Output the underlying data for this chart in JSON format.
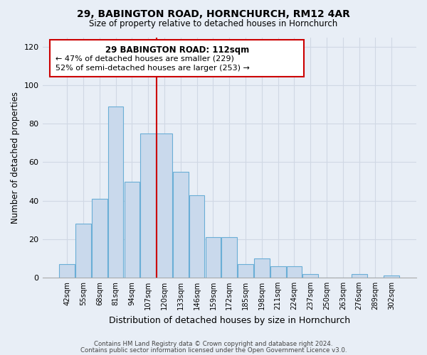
{
  "title": "29, BABINGTON ROAD, HORNCHURCH, RM12 4AR",
  "subtitle": "Size of property relative to detached houses in Hornchurch",
  "xlabel": "Distribution of detached houses by size in Hornchurch",
  "ylabel": "Number of detached properties",
  "categories": [
    "42sqm",
    "55sqm",
    "68sqm",
    "81sqm",
    "94sqm",
    "107sqm",
    "120sqm",
    "133sqm",
    "146sqm",
    "159sqm",
    "172sqm",
    "185sqm",
    "198sqm",
    "211sqm",
    "224sqm",
    "237sqm",
    "250sqm",
    "263sqm",
    "276sqm",
    "289sqm",
    "302sqm"
  ],
  "values": [
    7,
    28,
    41,
    89,
    50,
    75,
    75,
    55,
    43,
    21,
    21,
    7,
    10,
    6,
    6,
    2,
    0,
    0,
    2,
    0,
    1
  ],
  "bar_color": "#c9d9ec",
  "bar_edge_color": "#6aaed6",
  "vline_x": 6.0,
  "vline_color": "#cc0000",
  "annotation_title": "29 BABINGTON ROAD: 112sqm",
  "annotation_line1": "← 47% of detached houses are smaller (229)",
  "annotation_line2": "52% of semi-detached houses are larger (253) →",
  "annotation_box_facecolor": "#ffffff",
  "annotation_box_edgecolor": "#cc0000",
  "ylim": [
    0,
    125
  ],
  "yticks": [
    0,
    20,
    40,
    60,
    80,
    100,
    120
  ],
  "grid_color": "#d0d8e4",
  "footer1": "Contains HM Land Registry data © Crown copyright and database right 2024.",
  "footer2": "Contains public sector information licensed under the Open Government Licence v3.0.",
  "background_color": "#e8eef6",
  "plot_bg_color": "#e8eef6"
}
